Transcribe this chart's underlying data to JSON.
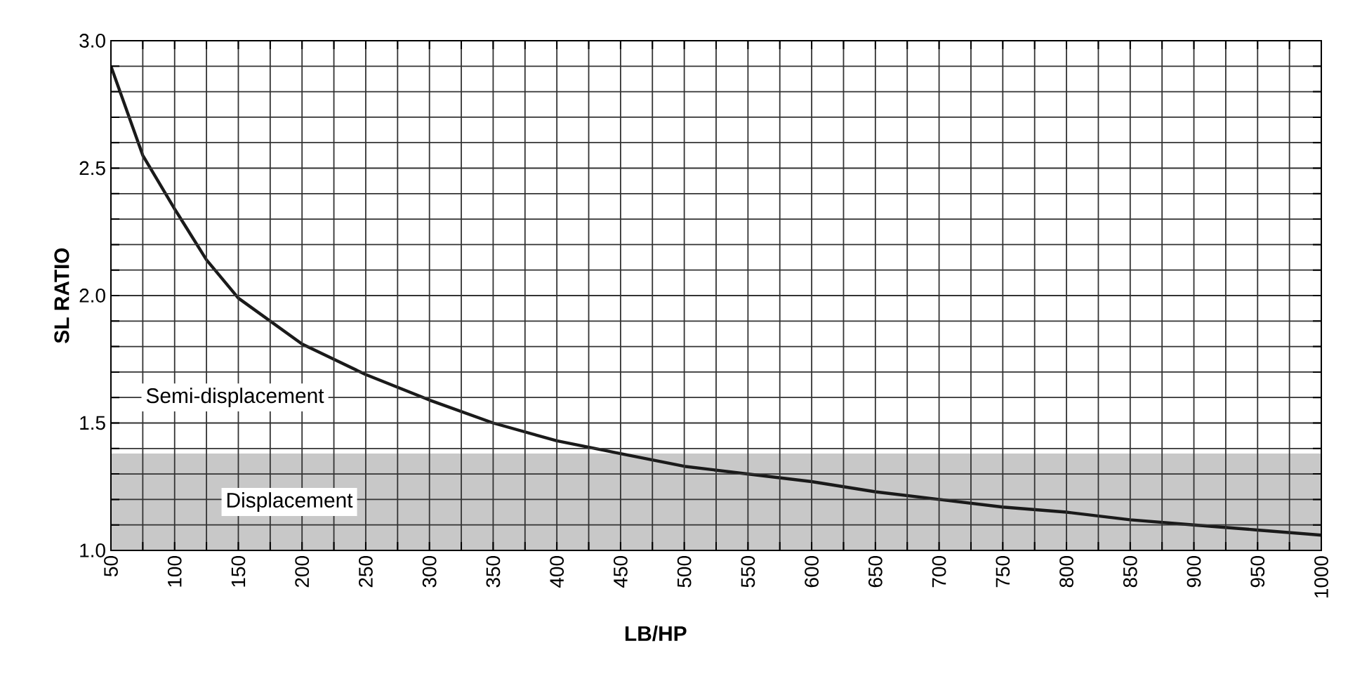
{
  "chart_data": {
    "type": "line",
    "xlabel": "LB/HP",
    "ylabel": "SL RATIO",
    "x": [
      50,
      75,
      100,
      125,
      150,
      200,
      250,
      300,
      350,
      400,
      450,
      500,
      550,
      600,
      650,
      700,
      750,
      800,
      850,
      900,
      950,
      1000
    ],
    "series": [
      {
        "color": "#1a1a1a",
        "values": [
          2.9,
          2.55,
          2.34,
          2.14,
          1.99,
          1.81,
          1.69,
          1.59,
          1.5,
          1.43,
          1.38,
          1.33,
          1.3,
          1.27,
          1.23,
          1.2,
          1.17,
          1.15,
          1.12,
          1.1,
          1.08,
          1.06
        ]
      }
    ],
    "xlim": [
      50,
      1000
    ],
    "ylim": [
      1,
      3
    ],
    "xticks": [
      50,
      {
        "value": 75,
        "label": null
      },
      100,
      {
        "value": 125,
        "label": null
      },
      150,
      {
        "value": 175,
        "label": null
      },
      200,
      {
        "value": 225,
        "label": null
      },
      250,
      {
        "value": 275,
        "label": null
      },
      300,
      {
        "value": 325,
        "label": null
      },
      350,
      {
        "value": 375,
        "label": null
      },
      400,
      {
        "value": 425,
        "label": null
      },
      450,
      {
        "value": 475,
        "label": null
      },
      500,
      {
        "value": 525,
        "label": null
      },
      550,
      {
        "value": 575,
        "label": null
      },
      600,
      {
        "value": 625,
        "label": null
      },
      650,
      {
        "value": 675,
        "label": null
      },
      700,
      {
        "value": 725,
        "label": null
      },
      750,
      {
        "value": 775,
        "label": null
      },
      800,
      {
        "value": 825,
        "label": null
      },
      850,
      {
        "value": 875,
        "label": null
      },
      900,
      {
        "value": 925,
        "label": null
      },
      950,
      {
        "value": 975,
        "label": null
      },
      1000
    ],
    "yticks": [
      {
        "value": 1,
        "label": "1.0"
      },
      {
        "value": 1.1,
        "label": null
      },
      {
        "value": 1.2,
        "label": null
      },
      {
        "value": 1.3,
        "label": null
      },
      {
        "value": 1.4,
        "label": null
      },
      1.5,
      {
        "value": 1.6,
        "label": null
      },
      {
        "value": 1.7,
        "label": null
      },
      {
        "value": 1.8,
        "label": null
      },
      {
        "value": 1.9,
        "label": null
      },
      {
        "value": 2,
        "label": "2.0"
      },
      {
        "value": 2.1,
        "label": null
      },
      {
        "value": 2.2,
        "label": null
      },
      {
        "value": 2.3,
        "label": null
      },
      {
        "value": 2.4,
        "label": null
      },
      2.5,
      {
        "value": 2.6,
        "label": null
      },
      {
        "value": 2.7,
        "label": null
      },
      {
        "value": 2.8,
        "label": null
      },
      {
        "value": 2.9,
        "label": null
      },
      {
        "value": 3,
        "label": "3.0"
      }
    ],
    "grid": true,
    "bands": [
      {
        "axis": "y",
        "from": 1,
        "to": 1.38,
        "label": "Displacement",
        "color": "#c8c8c8"
      }
    ],
    "annotations": [
      "Semi-displacement"
    ]
  }
}
